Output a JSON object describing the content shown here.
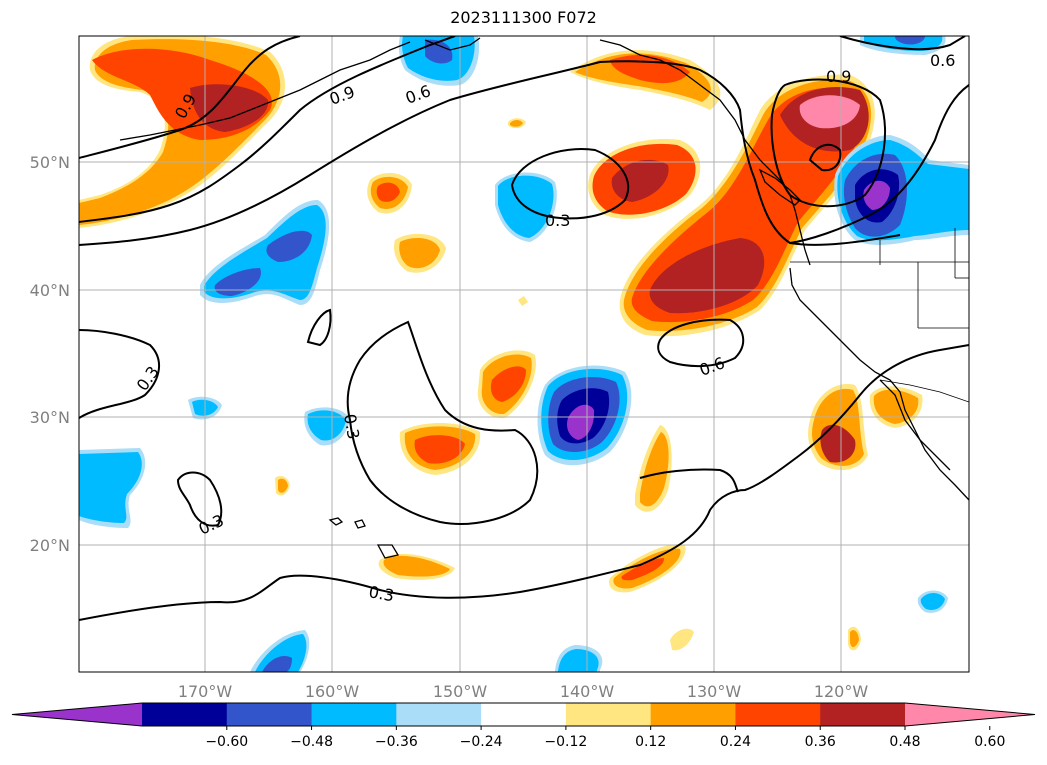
{
  "title": "2023111300 F072",
  "lat_labels": [
    "50°N",
    "40°N",
    "30°N",
    "20°N"
  ],
  "lon_labels": [
    "170°W",
    "160°W",
    "150°W",
    "140°W",
    "130°W",
    "120°W"
  ],
  "colorbar": {
    "ticks": [
      "−0.60",
      "−0.48",
      "−0.36",
      "−0.24",
      "−0.12",
      "0.12",
      "0.24",
      "0.36",
      "0.48",
      "0.60"
    ],
    "colors": [
      "#9933cc",
      "#000099",
      "#3355cc",
      "#00bbff",
      "#aaddf7",
      "#ffffff",
      "#ffe680",
      "#ff9f00",
      "#ff4400",
      "#b22222",
      "#ff88aa"
    ]
  },
  "contour_labels": [
    "0.9",
    "0.9",
    "0.6",
    "0.6",
    "0.3",
    "0.3",
    "0.3",
    "0.3",
    "0.6",
    "0.3",
    "0.9"
  ],
  "colors": {
    "grid": "#b0b0b0",
    "axis_text": "#808080",
    "frame": "#000000"
  }
}
